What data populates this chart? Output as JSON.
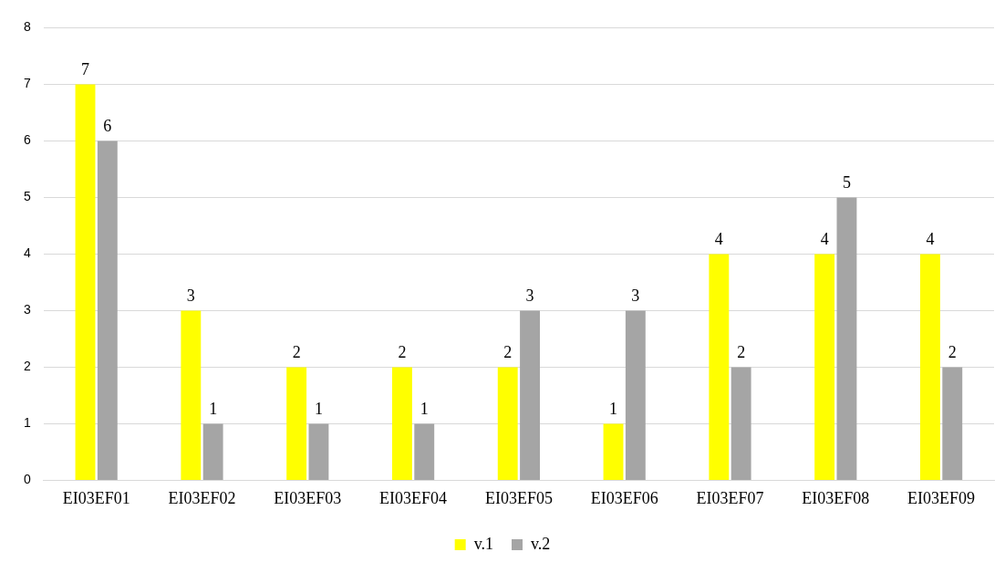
{
  "chart_data": {
    "type": "bar",
    "categories": [
      "EI03EF01",
      "EI03EF02",
      "EI03EF03",
      "EI03EF04",
      "EI03EF05",
      "EI03EF06",
      "EI03EF07",
      "EI03EF08",
      "EI03EF09"
    ],
    "series": [
      {
        "name": "v.1",
        "color": "#ffff00",
        "values": [
          7,
          3,
          2,
          2,
          2,
          1,
          4,
          4,
          4
        ]
      },
      {
        "name": "v.2",
        "color": "#a5a5a5",
        "values": [
          6,
          1,
          1,
          1,
          3,
          3,
          2,
          5,
          2
        ]
      }
    ],
    "ylim": [
      0,
      8
    ],
    "yticks": [
      0,
      1,
      2,
      3,
      4,
      5,
      6,
      7,
      8
    ],
    "grid": "y",
    "legend": "bottom",
    "data_labels": true
  }
}
